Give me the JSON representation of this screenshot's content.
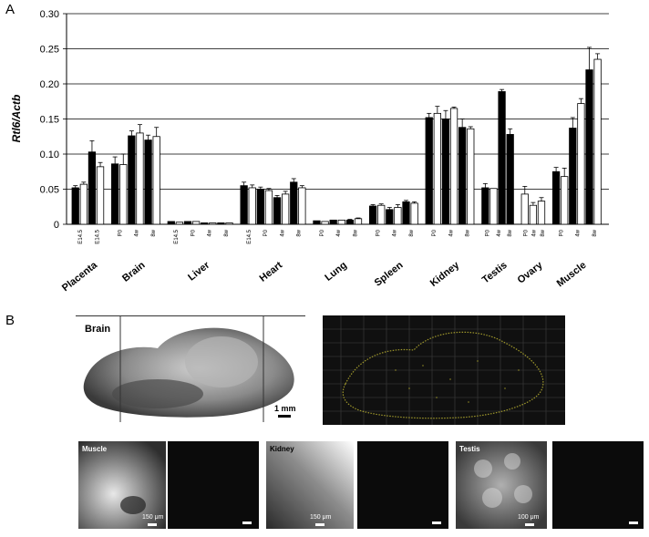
{
  "panel_a_letter": "A",
  "panel_b_letter": "B",
  "chart_data": {
    "type": "bar",
    "ylabel": "Rtl6/Actb",
    "ylim": [
      0,
      0.3
    ],
    "yticks": [
      "0",
      "0.05",
      "0.10",
      "0.15",
      "0.20",
      "0.25",
      "0.30"
    ],
    "grid": true,
    "groups": [
      {
        "tissue": "Placenta",
        "stages": [
          "E14.5",
          "E14.5"
        ],
        "bars": [
          {
            "v": 0.052,
            "e": 0.003,
            "filled": true
          },
          {
            "v": 0.057,
            "e": 0.003,
            "filled": false
          },
          {
            "v": 0.103,
            "e": 0.016,
            "filled": true
          },
          {
            "v": 0.082,
            "e": 0.006,
            "filled": false
          }
        ]
      },
      {
        "tissue": "Brain",
        "stages": [
          "P0",
          "4w",
          "8w"
        ],
        "bars": [
          {
            "v": 0.086,
            "e": 0.01,
            "filled": true
          },
          {
            "v": 0.085,
            "e": 0.015,
            "filled": false
          },
          {
            "v": 0.126,
            "e": 0.007,
            "filled": true
          },
          {
            "v": 0.13,
            "e": 0.012,
            "filled": false
          },
          {
            "v": 0.12,
            "e": 0.007,
            "filled": true
          },
          {
            "v": 0.125,
            "e": 0.013,
            "filled": false
          }
        ]
      },
      {
        "tissue": "Liver",
        "stages": [
          "E14.5",
          "P0",
          "4w",
          "8w"
        ],
        "bars": [
          {
            "v": 0.004,
            "e": 0.0,
            "filled": true
          },
          {
            "v": 0.003,
            "e": 0.0,
            "filled": false
          },
          {
            "v": 0.004,
            "e": 0.0,
            "filled": true
          },
          {
            "v": 0.004,
            "e": 0.0,
            "filled": false
          },
          {
            "v": 0.002,
            "e": 0.0,
            "filled": true
          },
          {
            "v": 0.002,
            "e": 0.0,
            "filled": false
          },
          {
            "v": 0.002,
            "e": 0.0,
            "filled": true
          },
          {
            "v": 0.002,
            "e": 0.0,
            "filled": false
          }
        ]
      },
      {
        "tissue": "Heart",
        "stages": [
          "E14.5",
          "P0",
          "4w",
          "8w"
        ],
        "bars": [
          {
            "v": 0.055,
            "e": 0.005,
            "filled": true
          },
          {
            "v": 0.052,
            "e": 0.004,
            "filled": false
          },
          {
            "v": 0.05,
            "e": 0.003,
            "filled": true
          },
          {
            "v": 0.048,
            "e": 0.003,
            "filled": false
          },
          {
            "v": 0.038,
            "e": 0.003,
            "filled": true
          },
          {
            "v": 0.043,
            "e": 0.004,
            "filled": false
          },
          {
            "v": 0.06,
            "e": 0.005,
            "filled": true
          },
          {
            "v": 0.052,
            "e": 0.003,
            "filled": false
          }
        ]
      },
      {
        "tissue": "Lung",
        "stages": [
          "P0",
          "4w",
          "8w"
        ],
        "bars": [
          {
            "v": 0.005,
            "e": 0.0,
            "filled": true
          },
          {
            "v": 0.004,
            "e": 0.0,
            "filled": false
          },
          {
            "v": 0.006,
            "e": 0.0,
            "filled": true
          },
          {
            "v": 0.006,
            "e": 0.0,
            "filled": false
          },
          {
            "v": 0.006,
            "e": 0.001,
            "filled": true
          },
          {
            "v": 0.008,
            "e": 0.001,
            "filled": false
          }
        ]
      },
      {
        "tissue": "Spleen",
        "stages": [
          "P0",
          "4w",
          "8w"
        ],
        "bars": [
          {
            "v": 0.026,
            "e": 0.002,
            "filled": true
          },
          {
            "v": 0.027,
            "e": 0.002,
            "filled": false
          },
          {
            "v": 0.021,
            "e": 0.003,
            "filled": true
          },
          {
            "v": 0.024,
            "e": 0.004,
            "filled": false
          },
          {
            "v": 0.032,
            "e": 0.002,
            "filled": true
          },
          {
            "v": 0.03,
            "e": 0.002,
            "filled": false
          }
        ]
      },
      {
        "tissue": "Kidney",
        "stages": [
          "P0",
          "4w",
          "8w"
        ],
        "bars": [
          {
            "v": 0.152,
            "e": 0.006,
            "filled": true
          },
          {
            "v": 0.158,
            "e": 0.01,
            "filled": false
          },
          {
            "v": 0.15,
            "e": 0.012,
            "filled": true
          },
          {
            "v": 0.165,
            "e": 0.002,
            "filled": false
          },
          {
            "v": 0.138,
            "e": 0.012,
            "filled": true
          },
          {
            "v": 0.136,
            "e": 0.003,
            "filled": false
          }
        ]
      },
      {
        "tissue": "Testis",
        "stages": [
          "P0",
          "4w",
          "8w"
        ],
        "bars": [
          {
            "v": 0.052,
            "e": 0.006,
            "filled": true
          },
          {
            "v": 0.051,
            "e": 0.0,
            "filled": false
          },
          {
            "v": 0.189,
            "e": 0.003,
            "filled": true
          },
          {
            "v": 0.128,
            "e": 0.008,
            "filled": true
          }
        ]
      },
      {
        "tissue": "Ovary",
        "stages": [
          "P0",
          "4w",
          "8w"
        ],
        "bars": [
          {
            "v": 0.043,
            "e": 0.011,
            "filled": false
          },
          {
            "v": 0.027,
            "e": 0.004,
            "filled": false
          },
          {
            "v": 0.033,
            "e": 0.005,
            "filled": false
          }
        ]
      },
      {
        "tissue": "Muscle",
        "stages": [
          "P0",
          "4w",
          "8w"
        ],
        "bars": [
          {
            "v": 0.075,
            "e": 0.006,
            "filled": true
          },
          {
            "v": 0.068,
            "e": 0.012,
            "filled": false
          },
          {
            "v": 0.137,
            "e": 0.015,
            "filled": true
          },
          {
            "v": 0.172,
            "e": 0.007,
            "filled": false
          },
          {
            "v": 0.22,
            "e": 0.032,
            "filled": true
          },
          {
            "v": 0.235,
            "e": 0.008,
            "filled": false
          }
        ]
      }
    ]
  },
  "images": {
    "brain_label": "Brain",
    "brain_scale": "1 mm",
    "muscle_label": "Muscle",
    "muscle_scale": "150 μm",
    "kidney_label": "Kidney",
    "kidney_scale": "150 μm",
    "testis_label": "Testis",
    "testis_scale": "100 μm"
  }
}
